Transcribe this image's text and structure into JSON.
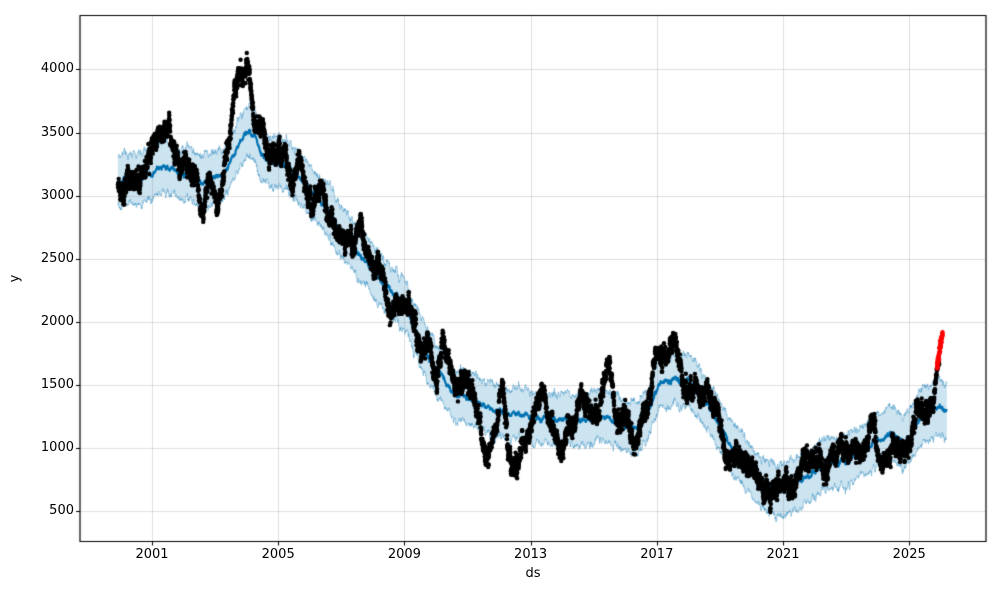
{
  "chart_data": {
    "type": "forecast-line-scatter-band",
    "title": "",
    "xlabel": "ds",
    "ylabel": "y",
    "xlim": [
      1998.718,
      2027.434
    ],
    "ylim": [
      258,
      4428
    ],
    "xticks": [
      2001,
      2005,
      2009,
      2013,
      2017,
      2021,
      2025
    ],
    "yticks": [
      500,
      1000,
      1500,
      2000,
      2500,
      3000,
      3500,
      4000
    ],
    "grid": true,
    "legend": "none",
    "series": [
      {
        "name": "yhat-trend-line",
        "type": "line",
        "points": [
          [
            1999.92,
            3100
          ],
          [
            2000.2,
            3140
          ],
          [
            2000.5,
            3110
          ],
          [
            2000.8,
            3150
          ],
          [
            2001.1,
            3190
          ],
          [
            2001.35,
            3240
          ],
          [
            2001.6,
            3220
          ],
          [
            2001.9,
            3160
          ],
          [
            2002.15,
            3190
          ],
          [
            2002.45,
            3130
          ],
          [
            2002.7,
            3100
          ],
          [
            2003.0,
            3130
          ],
          [
            2003.3,
            3180
          ],
          [
            2003.6,
            3330
          ],
          [
            2003.85,
            3440
          ],
          [
            2004.05,
            3520
          ],
          [
            2004.25,
            3460
          ],
          [
            2004.5,
            3330
          ],
          [
            2004.75,
            3270
          ],
          [
            2005.0,
            3240
          ],
          [
            2005.25,
            3260
          ],
          [
            2005.5,
            3180
          ],
          [
            2005.75,
            3120
          ],
          [
            2006.0,
            3040
          ],
          [
            2006.3,
            2960
          ],
          [
            2006.6,
            2880
          ],
          [
            2006.9,
            2760
          ],
          [
            2007.2,
            2660
          ],
          [
            2007.5,
            2570
          ],
          [
            2007.8,
            2470
          ],
          [
            2008.1,
            2360
          ],
          [
            2008.4,
            2290
          ],
          [
            2008.7,
            2220
          ],
          [
            2009.0,
            2130
          ],
          [
            2009.25,
            1990
          ],
          [
            2009.5,
            1840
          ],
          [
            2009.75,
            1730
          ],
          [
            2010.0,
            1620
          ],
          [
            2010.3,
            1520
          ],
          [
            2010.6,
            1440
          ],
          [
            2010.9,
            1400
          ],
          [
            2011.2,
            1370
          ],
          [
            2011.5,
            1350
          ],
          [
            2011.8,
            1320
          ],
          [
            2012.1,
            1290
          ],
          [
            2012.4,
            1280
          ],
          [
            2012.7,
            1260
          ],
          [
            2013.0,
            1240
          ],
          [
            2013.4,
            1230
          ],
          [
            2013.8,
            1215
          ],
          [
            2014.2,
            1220
          ],
          [
            2014.6,
            1210
          ],
          [
            2015.0,
            1230
          ],
          [
            2015.4,
            1225
          ],
          [
            2015.8,
            1200
          ],
          [
            2016.1,
            1175
          ],
          [
            2016.4,
            1160
          ],
          [
            2016.7,
            1250
          ],
          [
            2016.9,
            1390
          ],
          [
            2017.1,
            1505
          ],
          [
            2017.35,
            1530
          ],
          [
            2017.6,
            1535
          ],
          [
            2017.8,
            1525
          ],
          [
            2018.0,
            1555
          ],
          [
            2018.2,
            1495
          ],
          [
            2018.45,
            1390
          ],
          [
            2018.7,
            1300
          ],
          [
            2019.0,
            1160
          ],
          [
            2019.3,
            1030
          ],
          [
            2019.6,
            950
          ],
          [
            2019.9,
            850
          ],
          [
            2020.2,
            760
          ],
          [
            2020.5,
            690
          ],
          [
            2020.75,
            660
          ],
          [
            2021.0,
            680
          ],
          [
            2021.3,
            710
          ],
          [
            2021.6,
            760
          ],
          [
            2021.9,
            800
          ],
          [
            2022.2,
            830
          ],
          [
            2022.5,
            865
          ],
          [
            2022.8,
            885
          ],
          [
            2023.1,
            910
          ],
          [
            2023.4,
            960
          ],
          [
            2023.7,
            1010
          ],
          [
            2024.0,
            1060
          ],
          [
            2024.3,
            1100
          ],
          [
            2024.6,
            1090
          ],
          [
            2024.85,
            1050
          ],
          [
            2025.05,
            1110
          ],
          [
            2025.3,
            1220
          ],
          [
            2025.55,
            1275
          ],
          [
            2025.8,
            1300
          ],
          [
            2025.95,
            1315
          ],
          [
            2026.2,
            1300
          ]
        ],
        "line_wiggle": {
          "phi": 0.88,
          "sd": 7,
          "clip": 30
        },
        "range": [
          1999.92,
          2026.2
        ]
      },
      {
        "name": "uncertainty-band",
        "type": "band",
        "base_half_width": 200,
        "end_half_width": 222,
        "widen_start": 2024.0,
        "edge_noise": {
          "phi": 0.8,
          "sd": 10
        },
        "range": [
          1999.92,
          2026.2
        ]
      },
      {
        "name": "observations",
        "type": "scatter",
        "model": {
          "t_start": 1999.92,
          "t_end": 2025.95,
          "step": 0.004,
          "seed": 1337,
          "ar1": {
            "phi": 0.985,
            "sd": 14,
            "clip": 260
          },
          "ar2": {
            "phi": 0.55,
            "sd": 26
          },
          "jitter_sd": 12,
          "dot_radius": 2.2,
          "end_ramp": {
            "t0": 2025.76,
            "slope": 2600,
            "cap": 400,
            "noise_scale": 0.4
          }
        },
        "excursions": [
          [
            2001.2,
            0.1,
            230
          ],
          [
            2001.55,
            0.15,
            160
          ],
          [
            2002.1,
            0.1,
            -140
          ],
          [
            2002.6,
            0.12,
            -330
          ],
          [
            2003.05,
            0.08,
            -180
          ],
          [
            2003.7,
            0.18,
            550
          ],
          [
            2004.05,
            0.1,
            520
          ],
          [
            2004.5,
            0.1,
            180
          ],
          [
            2005.7,
            0.12,
            200
          ],
          [
            2006.4,
            0.1,
            120
          ],
          [
            2007.6,
            0.1,
            140
          ],
          [
            2008.15,
            0.12,
            160
          ],
          [
            2008.6,
            0.1,
            -160
          ],
          [
            2009.05,
            0.1,
            170
          ],
          [
            2010.2,
            0.1,
            120
          ],
          [
            2011.0,
            0.12,
            130
          ],
          [
            2011.6,
            0.15,
            -240
          ],
          [
            2012.1,
            0.1,
            300
          ],
          [
            2012.5,
            0.2,
            -300
          ],
          [
            2013.4,
            0.12,
            260
          ],
          [
            2013.95,
            0.12,
            -230
          ],
          [
            2014.6,
            0.1,
            120
          ],
          [
            2015.45,
            0.15,
            340
          ],
          [
            2016.25,
            0.12,
            -170
          ],
          [
            2017.0,
            0.1,
            150
          ],
          [
            2017.45,
            0.2,
            210
          ],
          [
            2018.6,
            0.1,
            120
          ],
          [
            2019.2,
            0.1,
            -120
          ],
          [
            2020.6,
            0.12,
            -90
          ],
          [
            2021.6,
            0.1,
            100
          ],
          [
            2022.3,
            0.1,
            -90
          ],
          [
            2023.8,
            0.12,
            160
          ],
          [
            2024.8,
            0.1,
            -120
          ],
          [
            2025.3,
            0.1,
            100
          ]
        ]
      },
      {
        "name": "anomaly-points",
        "type": "scatter",
        "t_start": 2025.88,
        "t_end": 2026.05,
        "v_start": 1645,
        "v_end": 1905,
        "count": 55,
        "jitter_t": 0.012,
        "jitter_v": 18,
        "dot_radius": 2.2,
        "seed": 77
      }
    ],
    "colors": {
      "line": "#0072B2",
      "band_fill": "rgba(0,114,178,0.20)",
      "band_edge": "rgba(0,114,178,0.32)",
      "dots": "#000000",
      "anomaly": "#ff0000",
      "grid": "rgba(128,128,128,0.25)",
      "frame": "#000000",
      "text": "#000000",
      "background": "#ffffff"
    }
  }
}
